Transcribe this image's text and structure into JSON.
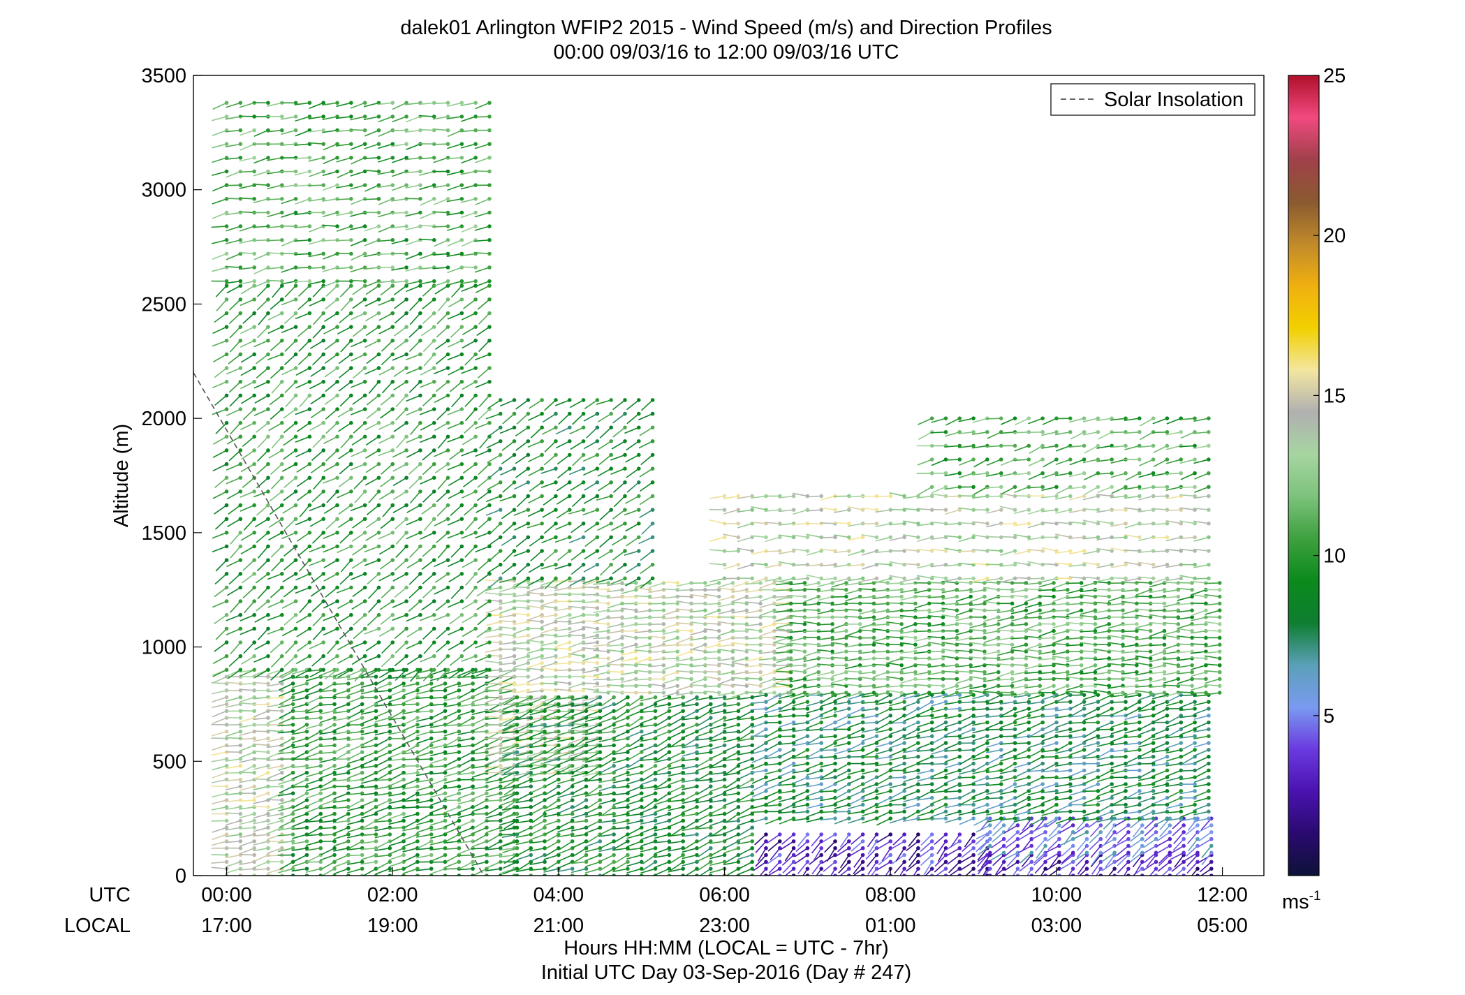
{
  "chart_data": {
    "type": "scatter",
    "title": "dalek01 Arlington WFIP2 2015 - Wind Speed (m/s) and Direction Profiles",
    "subtitle": "00:00 09/03/16 to 12:00 09/03/16  UTC",
    "ylabel": "Altitude (m)",
    "xlabel": "Hours HH:MM  (LOCAL = UTC - 7hr)",
    "xlabel2": "Initial UTC Day 03-Sep-2016 (Day # 247)",
    "x_row_labels": {
      "utc": "UTC",
      "local": "LOCAL"
    },
    "x_ticks_utc": [
      "00:00",
      "02:00",
      "04:00",
      "06:00",
      "08:00",
      "10:00",
      "12:00"
    ],
    "x_ticks_local": [
      "17:00",
      "19:00",
      "21:00",
      "23:00",
      "01:00",
      "03:00",
      "05:00"
    ],
    "x_tick_hours": [
      0,
      2,
      4,
      6,
      8,
      10,
      12
    ],
    "xlim_hours": [
      -0.4,
      12.5
    ],
    "y_ticks": [
      0,
      500,
      1000,
      1500,
      2000,
      2500,
      3000,
      3500
    ],
    "ylim": [
      0,
      3500
    ],
    "legend": {
      "entry": "Solar Insolation",
      "position": "top-right",
      "style": "dashed"
    },
    "colorbar": {
      "ticks": [
        5,
        10,
        15,
        20,
        25
      ],
      "range": [
        0,
        25
      ],
      "unit_label": "ms",
      "unit_exponent": "-1",
      "colors": [
        "#0d1238",
        "#2a0a70",
        "#4a12b0",
        "#6a3ae0",
        "#7a9af0",
        "#5aa0b8",
        "#0e7e30",
        "#0b8a1c",
        "#3ea03e",
        "#7cc27c",
        "#a6d5a0",
        "#b0b0b0",
        "#f3e6a0",
        "#f2d000",
        "#f0b010",
        "#c08a2a",
        "#8a5a30",
        "#a0404a",
        "#f04a80",
        "#b0102a"
      ]
    },
    "solar_insolation_line": {
      "x_hours": [
        -0.4,
        3.1
      ],
      "y": [
        2200,
        0
      ]
    },
    "grid": false,
    "wind_barbs": {
      "encoding": "one barb per (time, altitude) sample; dot marks the sample, tail points along wind direction, color = wind speed",
      "time_step_hours": 0.1667,
      "regions": [
        {
          "t": [
            0.0,
            0.8
          ],
          "alt": [
            0,
            900
          ],
          "speed": 14,
          "dir_deg": 260
        },
        {
          "t": [
            0.8,
            3.5
          ],
          "alt": [
            0,
            900
          ],
          "speed": 10,
          "dir_deg": 255
        },
        {
          "t": [
            3.3,
            4.6
          ],
          "alt": [
            450,
            1300
          ],
          "speed": 14,
          "dir_deg": 265
        },
        {
          "t": [
            4.6,
            6.8
          ],
          "alt": [
            800,
            1300
          ],
          "speed": 14,
          "dir_deg": 265
        },
        {
          "t": [
            3.5,
            6.5
          ],
          "alt": [
            0,
            800
          ],
          "speed": 9,
          "dir_deg": 250
        },
        {
          "t": [
            6.5,
            9.2
          ],
          "alt": [
            0,
            200
          ],
          "speed": 3,
          "dir_deg": 225
        },
        {
          "t": [
            9.2,
            12.0
          ],
          "alt": [
            0,
            100
          ],
          "speed": 3,
          "dir_deg": 225
        },
        {
          "t": [
            9.2,
            12.0
          ],
          "alt": [
            100,
            250
          ],
          "speed": 5,
          "dir_deg": 230
        },
        {
          "t": [
            6.5,
            12.0
          ],
          "alt": [
            250,
            800
          ],
          "speed": 8,
          "dir_deg": 255
        },
        {
          "t": [
            0.0,
            3.3
          ],
          "alt": [
            900,
            2600
          ],
          "speed": 10,
          "dir_deg": 235
        },
        {
          "t": [
            0.0,
            3.3
          ],
          "alt": [
            2600,
            3400
          ],
          "speed": 11,
          "dir_deg": 260
        },
        {
          "t": [
            3.3,
            5.3
          ],
          "alt": [
            1300,
            2100
          ],
          "speed": 9,
          "dir_deg": 240
        },
        {
          "t": [
            6.8,
            12.0
          ],
          "alt": [
            800,
            1300
          ],
          "speed": 11,
          "dir_deg": 265
        },
        {
          "t": [
            6.0,
            12.0
          ],
          "alt": [
            1300,
            1700
          ],
          "speed": 14,
          "dir_deg": 268
        },
        {
          "t": [
            8.5,
            12.0
          ],
          "alt": [
            1700,
            2000
          ],
          "speed": 11,
          "dir_deg": 255
        }
      ]
    }
  }
}
